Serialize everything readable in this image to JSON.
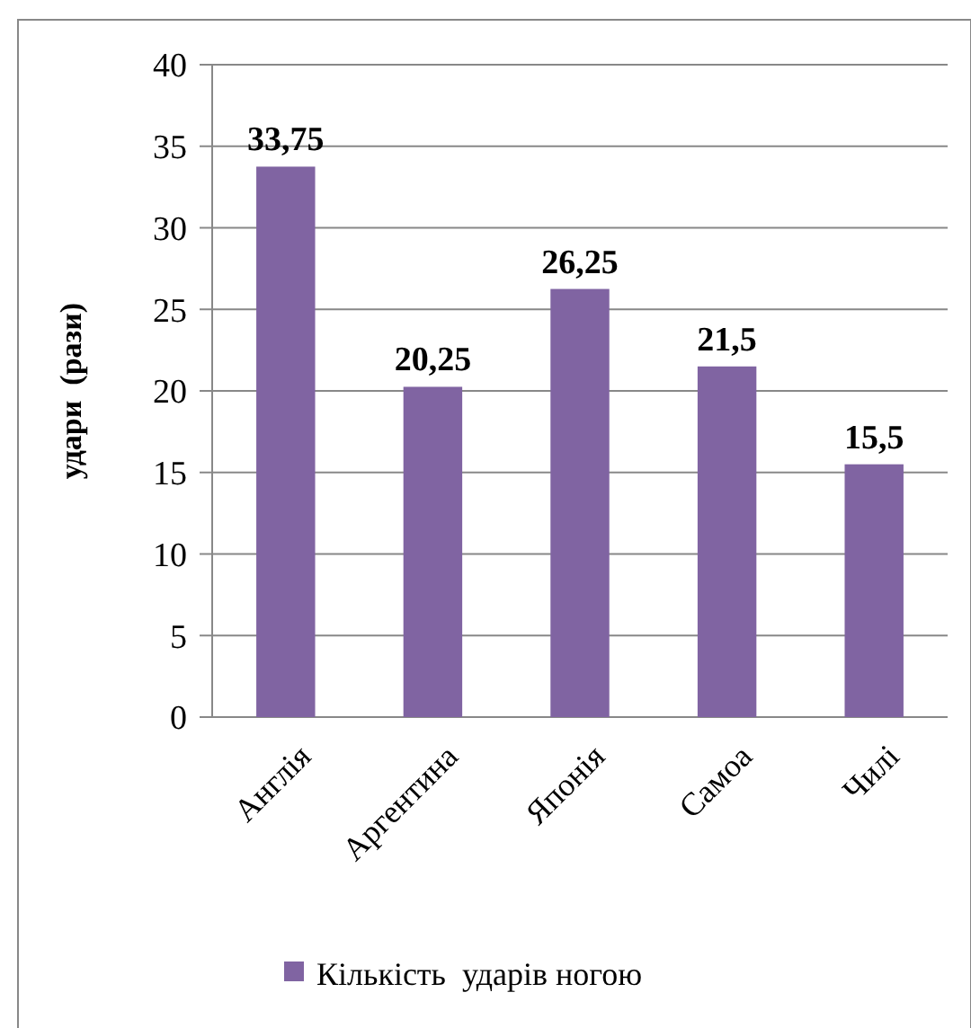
{
  "chart_data": {
    "type": "bar",
    "ylabel": "удари  (рази)",
    "categories": [
      "Англія",
      "Аргентина",
      "Японія",
      "Самоа",
      "Чилі"
    ],
    "series": [
      {
        "name": "Кількість  ударів ногою",
        "color": "#8064a2",
        "values": [
          33.75,
          20.25,
          26.25,
          21.5,
          15.5
        ],
        "value_labels": [
          "33,75",
          "20,25",
          "26,25",
          "21,5",
          "15,5"
        ]
      }
    ],
    "ylim": [
      0,
      40
    ],
    "yticks": [
      0,
      5,
      10,
      15,
      20,
      25,
      30,
      35,
      40
    ],
    "grid": "y",
    "legend": "bottom"
  }
}
